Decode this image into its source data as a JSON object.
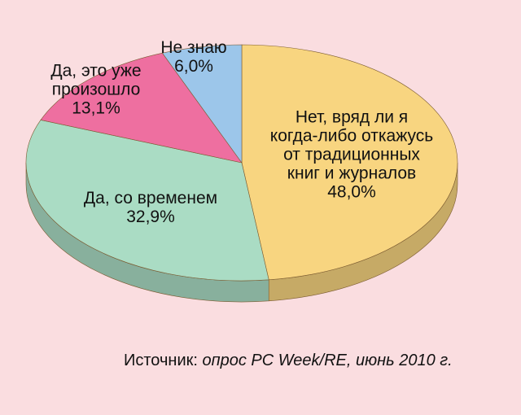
{
  "chart_data": {
    "type": "pie",
    "categories": [
      "Нет, вряд ли я\nкогда-либо откажусь\nот традиционных\nкниг и журналов",
      "Да, со временем",
      "Да, это уже\nпроизошло",
      "Не знаю"
    ],
    "values": [
      48.0,
      32.9,
      13.1,
      6.0
    ],
    "value_labels": [
      "48,0%",
      "32,9%",
      "13,1%",
      "6,0%"
    ],
    "colors": [
      "#f8d580",
      "#aadcc4",
      "#ee6fa0",
      "#9cc6ea"
    ],
    "source_label": "Источник:",
    "source_text": "опрос PC Week/RE, июнь 2010 г."
  }
}
